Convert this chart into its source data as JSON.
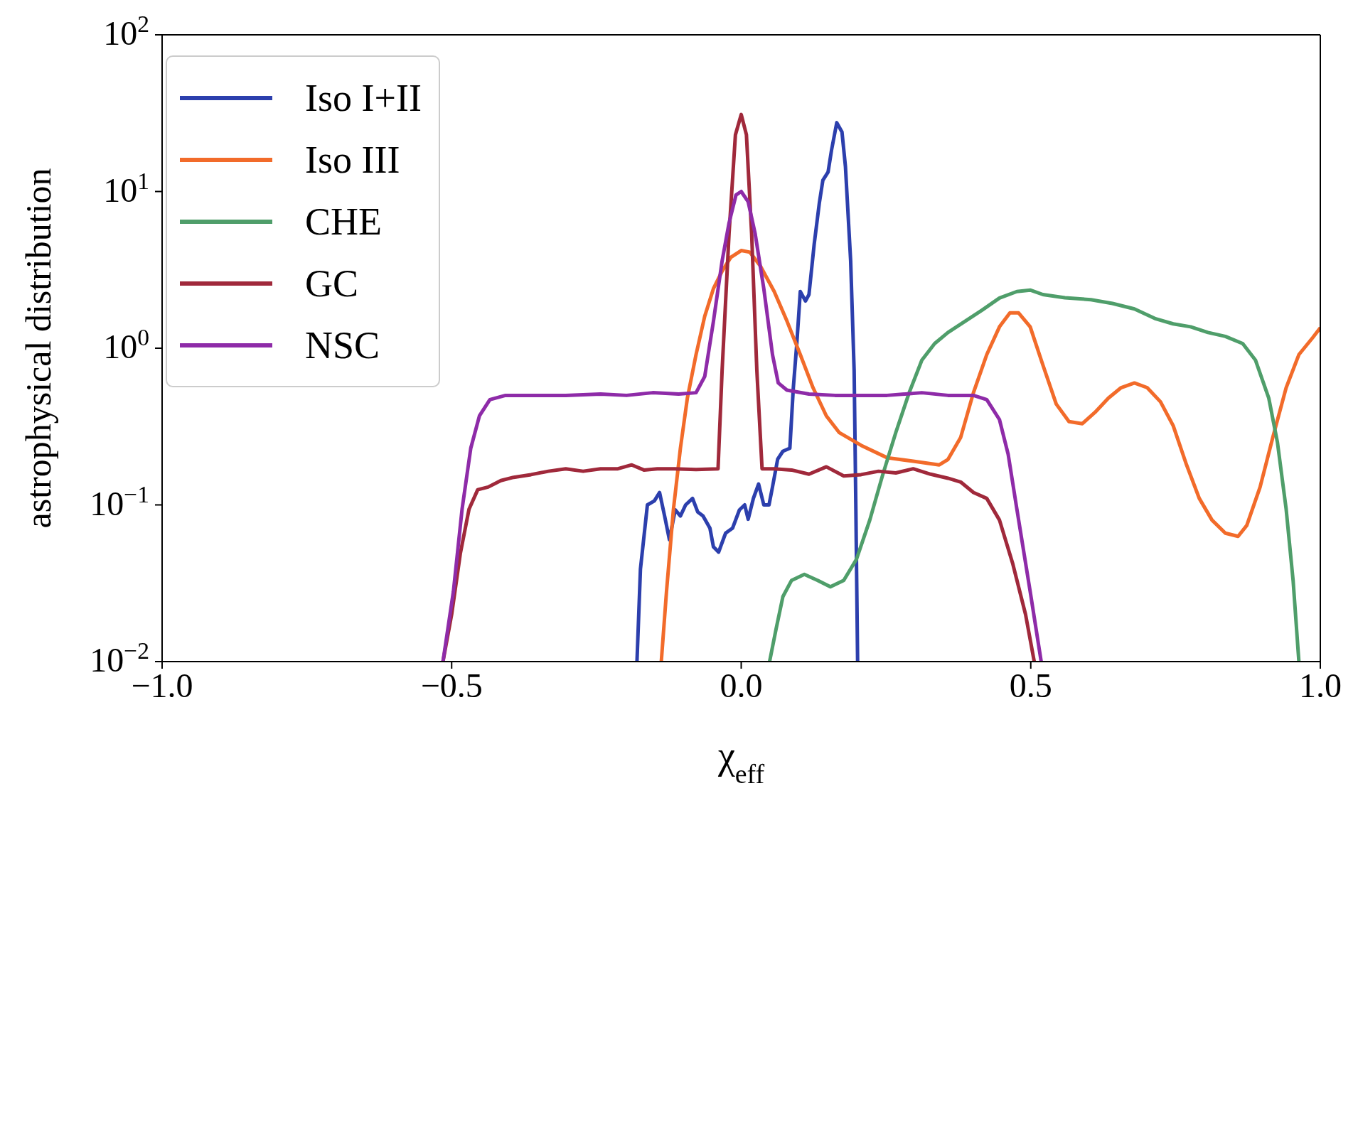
{
  "chart_data": {
    "type": "line",
    "xlabel": "χ$_{eff}$",
    "ylabel": "astrophysical distribution",
    "log": "y",
    "xlim": [
      -1,
      1
    ],
    "ylim": [
      0.01,
      100
    ],
    "xticks": [
      {
        "value": -1,
        "label": "−1.0"
      },
      {
        "value": -0.5,
        "label": "−0.5"
      },
      {
        "value": 0,
        "label": "0.0"
      },
      {
        "value": 0.5,
        "label": "0.5"
      },
      {
        "value": 1,
        "label": "1.0"
      }
    ],
    "yticks": [
      {
        "value": 0.01,
        "label": "10$^{−2}$"
      },
      {
        "value": 0.1,
        "label": "10$^{−1}$"
      },
      {
        "value": 1,
        "label": "10$^{0}$"
      },
      {
        "value": 10,
        "label": "10$^{1}$"
      },
      {
        "value": 100,
        "label": "10$^{2}$"
      }
    ],
    "legend": "top left",
    "marker": "none",
    "series": [
      {
        "name": "Iso I+II",
        "color": "#2c3fad",
        "x": [
          -0.18,
          -0.174,
          -0.162,
          -0.15,
          -0.141,
          -0.132,
          -0.124,
          -0.114,
          -0.105,
          -0.096,
          -0.084,
          -0.075,
          -0.066,
          -0.054,
          -0.048,
          -0.039,
          -0.027,
          -0.015,
          -0.003,
          0.006,
          0.012,
          0.021,
          0.03,
          0.039,
          0.048,
          0.054,
          0.063,
          0.072,
          0.084,
          0.09,
          0.096,
          0.102,
          0.111,
          0.117,
          0.126,
          0.135,
          0.141,
          0.15,
          0.156,
          0.165,
          0.174,
          0.18,
          0.189,
          0.195,
          0.198,
          0.201
        ],
        "values": [
          0.01,
          0.039,
          0.1,
          0.106,
          0.12,
          0.084,
          0.06,
          0.093,
          0.085,
          0.1,
          0.11,
          0.09,
          0.085,
          0.071,
          0.054,
          0.05,
          0.066,
          0.071,
          0.093,
          0.1,
          0.081,
          0.11,
          0.136,
          0.1,
          0.1,
          0.13,
          0.196,
          0.22,
          0.23,
          0.56,
          1.07,
          2.3,
          2,
          2.2,
          4.6,
          8.5,
          11.8,
          13.3,
          18.4,
          27.5,
          24,
          14.4,
          3.6,
          0.72,
          0.094,
          0.01
        ]
      },
      {
        "name": "Iso III",
        "color": "#f26b2a",
        "x": [
          -0.138,
          -0.129,
          -0.117,
          -0.105,
          -0.093,
          -0.078,
          -0.063,
          -0.048,
          -0.033,
          -0.018,
          0,
          0.015,
          0.033,
          0.057,
          0.079,
          0.102,
          0.124,
          0.147,
          0.169,
          0.207,
          0.252,
          0.297,
          0.342,
          0.357,
          0.379,
          0.401,
          0.424,
          0.446,
          0.464,
          0.479,
          0.499,
          0.521,
          0.544,
          0.566,
          0.589,
          0.611,
          0.634,
          0.656,
          0.679,
          0.701,
          0.724,
          0.746,
          0.769,
          0.791,
          0.813,
          0.836,
          0.858,
          0.873,
          0.896,
          0.918,
          0.941,
          0.963,
          0.987,
          1
        ],
        "values": [
          0.01,
          0.028,
          0.094,
          0.23,
          0.48,
          0.91,
          1.6,
          2.4,
          3.1,
          3.8,
          4.2,
          4.1,
          3.35,
          2.3,
          1.49,
          0.91,
          0.56,
          0.37,
          0.29,
          0.24,
          0.2,
          0.19,
          0.18,
          0.195,
          0.27,
          0.52,
          0.91,
          1.37,
          1.68,
          1.68,
          1.37,
          0.78,
          0.44,
          0.34,
          0.33,
          0.39,
          0.48,
          0.56,
          0.6,
          0.56,
          0.455,
          0.32,
          0.18,
          0.11,
          0.08,
          0.066,
          0.063,
          0.074,
          0.13,
          0.27,
          0.56,
          0.91,
          1.17,
          1.35
        ]
      },
      {
        "name": "CHE",
        "color": "#4f9e6a",
        "x": [
          0.049,
          0.06,
          0.072,
          0.087,
          0.109,
          0.132,
          0.154,
          0.177,
          0.199,
          0.222,
          0.244,
          0.267,
          0.29,
          0.312,
          0.334,
          0.357,
          0.387,
          0.416,
          0.446,
          0.476,
          0.499,
          0.521,
          0.559,
          0.604,
          0.641,
          0.679,
          0.716,
          0.746,
          0.776,
          0.806,
          0.836,
          0.866,
          0.888,
          0.911,
          0.926,
          0.941,
          0.953,
          0.963
        ],
        "values": [
          0.01,
          0.016,
          0.026,
          0.033,
          0.036,
          0.033,
          0.03,
          0.033,
          0.045,
          0.08,
          0.154,
          0.29,
          0.52,
          0.84,
          1.07,
          1.26,
          1.49,
          1.75,
          2.09,
          2.3,
          2.35,
          2.2,
          2.1,
          2.04,
          1.93,
          1.78,
          1.54,
          1.43,
          1.37,
          1.26,
          1.19,
          1.07,
          0.84,
          0.48,
          0.25,
          0.094,
          0.033,
          0.01
        ]
      },
      {
        "name": "GC",
        "color": "#a0293b",
        "x": [
          -0.515,
          -0.5,
          -0.485,
          -0.47,
          -0.455,
          -0.437,
          -0.415,
          -0.393,
          -0.363,
          -0.333,
          -0.303,
          -0.273,
          -0.243,
          -0.213,
          -0.189,
          -0.168,
          -0.145,
          -0.115,
          -0.078,
          -0.04,
          -0.033,
          -0.021,
          -0.01,
          0,
          0.009,
          0.018,
          0.027,
          0.036,
          0.057,
          0.087,
          0.117,
          0.147,
          0.177,
          0.207,
          0.237,
          0.267,
          0.297,
          0.327,
          0.357,
          0.379,
          0.401,
          0.424,
          0.446,
          0.469,
          0.491,
          0.506
        ],
        "values": [
          0.01,
          0.02,
          0.049,
          0.094,
          0.125,
          0.13,
          0.143,
          0.15,
          0.156,
          0.164,
          0.17,
          0.164,
          0.17,
          0.17,
          0.18,
          0.167,
          0.17,
          0.17,
          0.168,
          0.17,
          0.72,
          5.4,
          23,
          31,
          23,
          5.4,
          0.72,
          0.17,
          0.17,
          0.167,
          0.157,
          0.175,
          0.153,
          0.156,
          0.164,
          0.16,
          0.17,
          0.157,
          0.148,
          0.14,
          0.12,
          0.11,
          0.08,
          0.042,
          0.02,
          0.01
        ]
      },
      {
        "name": "NSC",
        "color": "#8e2ba8",
        "x": [
          -0.515,
          -0.497,
          -0.482,
          -0.467,
          -0.452,
          -0.434,
          -0.407,
          -0.363,
          -0.303,
          -0.243,
          -0.198,
          -0.153,
          -0.108,
          -0.078,
          -0.063,
          -0.048,
          -0.033,
          -0.021,
          -0.009,
          0,
          0.012,
          0.024,
          0.039,
          0.054,
          0.064,
          0.079,
          0.117,
          0.162,
          0.207,
          0.252,
          0.312,
          0.357,
          0.401,
          0.424,
          0.446,
          0.461,
          0.476,
          0.499,
          0.518
        ],
        "values": [
          0.01,
          0.028,
          0.094,
          0.23,
          0.37,
          0.47,
          0.5,
          0.5,
          0.5,
          0.51,
          0.5,
          0.52,
          0.51,
          0.52,
          0.66,
          1.48,
          3.6,
          6.3,
          9.5,
          10,
          8.6,
          5.4,
          2.4,
          0.91,
          0.6,
          0.54,
          0.51,
          0.5,
          0.5,
          0.5,
          0.52,
          0.5,
          0.5,
          0.47,
          0.35,
          0.21,
          0.094,
          0.028,
          0.01
        ]
      }
    ]
  }
}
